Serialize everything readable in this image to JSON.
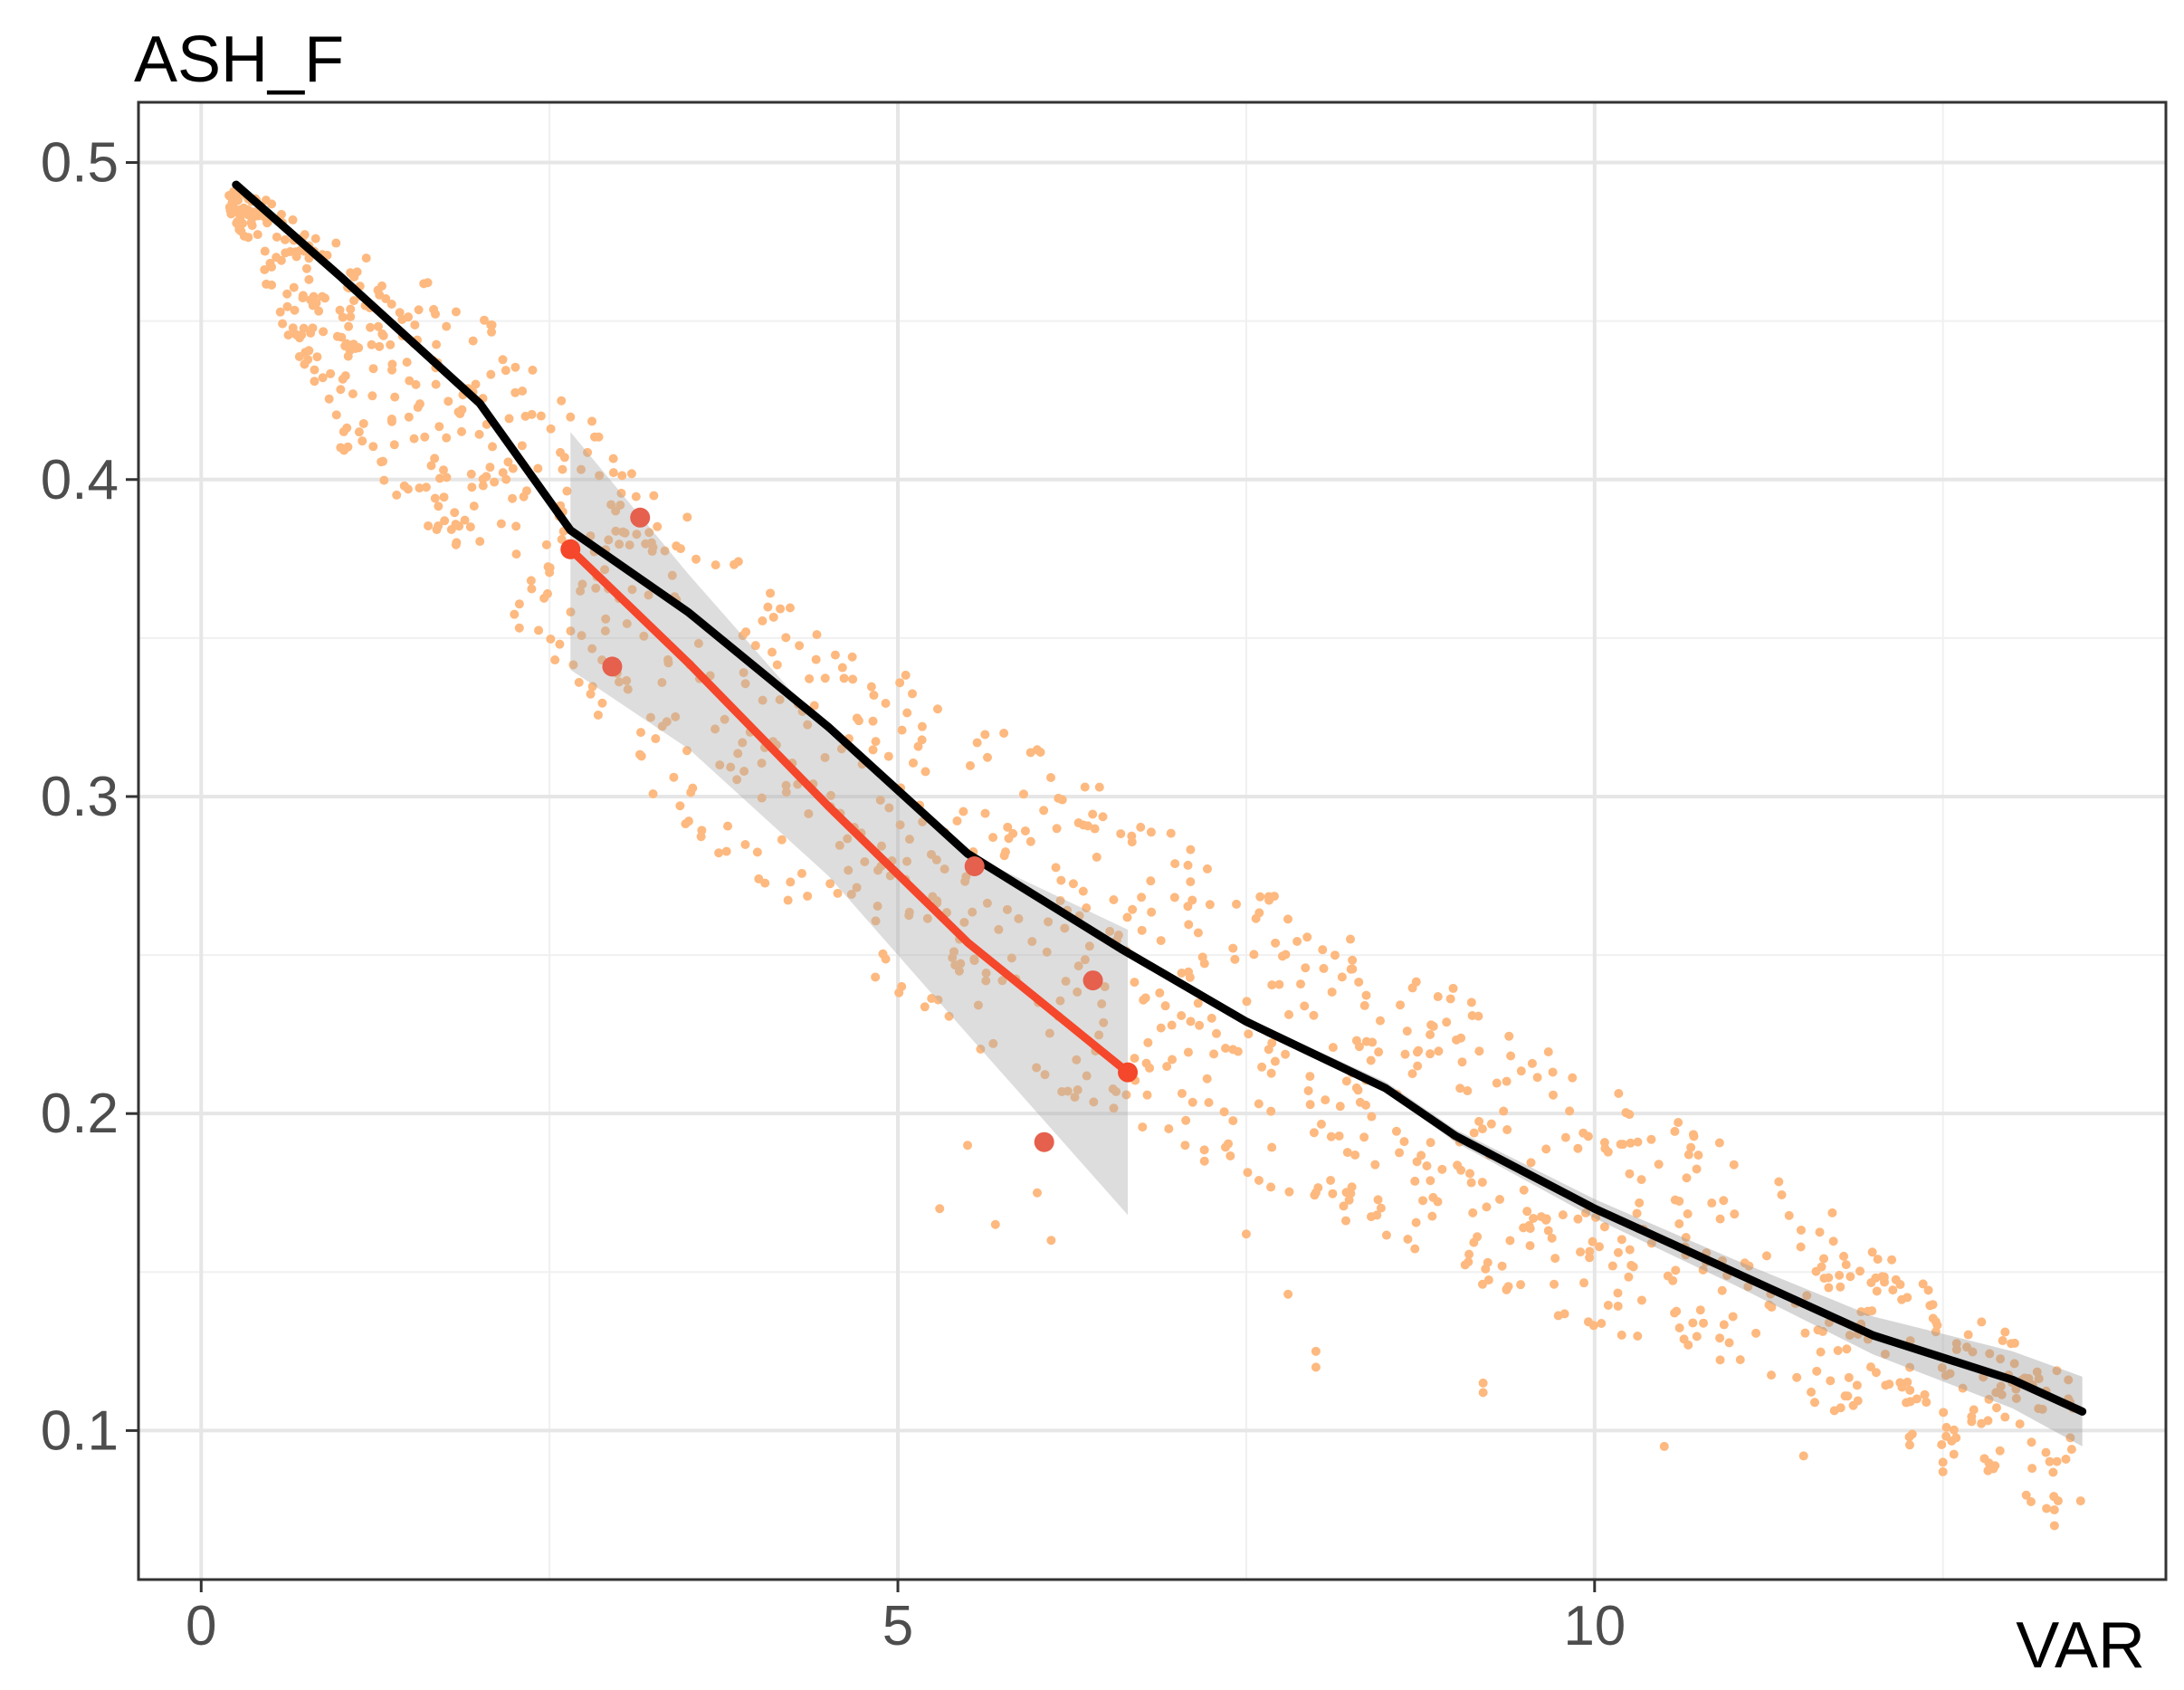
{
  "chart_data": {
    "type": "scatter",
    "xlabel": "VAR",
    "ylabel": "ASH_F",
    "xlim": [
      -0.45,
      14.1
    ],
    "ylim": [
      0.053,
      0.519
    ],
    "x_ticks": [
      0,
      5,
      10
    ],
    "x_tick_labels": [
      "0",
      "5",
      "10"
    ],
    "y_ticks": [
      0.1,
      0.2,
      0.3,
      0.4,
      0.5
    ],
    "y_tick_labels": [
      "0.1",
      "0.2",
      "0.3",
      "0.4",
      "0.5"
    ],
    "grid": true,
    "legend": "none",
    "series": [
      {
        "id": "all_points",
        "kind": "point-cloud",
        "color": "#fdb97f",
        "approx_count": 1200,
        "envelope": [
          {
            "x": 0.2,
            "y_low": 0.485,
            "y_high": 0.495
          },
          {
            "x": 1.0,
            "y_low": 0.41,
            "y_high": 0.475
          },
          {
            "x": 2.0,
            "y_low": 0.37,
            "y_high": 0.455
          },
          {
            "x": 3.0,
            "y_low": 0.31,
            "y_high": 0.41
          },
          {
            "x": 4.0,
            "y_low": 0.27,
            "y_high": 0.37
          },
          {
            "x": 5.0,
            "y_low": 0.235,
            "y_high": 0.34
          },
          {
            "x": 6.0,
            "y_low": 0.21,
            "y_high": 0.315
          },
          {
            "x": 7.0,
            "y_low": 0.19,
            "y_high": 0.29
          },
          {
            "x": 8.0,
            "y_low": 0.17,
            "y_high": 0.26
          },
          {
            "x": 9.0,
            "y_low": 0.15,
            "y_high": 0.24
          },
          {
            "x": 10.0,
            "y_low": 0.13,
            "y_high": 0.21
          },
          {
            "x": 11.0,
            "y_low": 0.12,
            "y_high": 0.19
          },
          {
            "x": 12.0,
            "y_low": 0.1,
            "y_high": 0.16
          },
          {
            "x": 13.0,
            "y_low": 0.08,
            "y_high": 0.13
          },
          {
            "x": 13.5,
            "y_low": 0.07,
            "y_high": 0.115
          }
        ],
        "outliers": [
          {
            "x": 5.3,
            "y": 0.17
          },
          {
            "x": 5.5,
            "y": 0.19
          },
          {
            "x": 5.7,
            "y": 0.165
          },
          {
            "x": 6.1,
            "y": 0.16
          },
          {
            "x": 6.0,
            "y": 0.175
          },
          {
            "x": 7.2,
            "y": 0.185
          },
          {
            "x": 7.5,
            "y": 0.162
          },
          {
            "x": 7.8,
            "y": 0.143
          },
          {
            "x": 8.0,
            "y": 0.125
          },
          {
            "x": 8.0,
            "y": 0.12
          },
          {
            "x": 9.2,
            "y": 0.115
          },
          {
            "x": 9.2,
            "y": 0.112
          },
          {
            "x": 10.5,
            "y": 0.095
          },
          {
            "x": 11.5,
            "y": 0.092
          },
          {
            "x": 12.5,
            "y": 0.09
          },
          {
            "x": 12.5,
            "y": 0.087
          },
          {
            "x": 13.3,
            "y": 0.075
          },
          {
            "x": 13.3,
            "y": 0.07
          },
          {
            "x": 13.4,
            "y": 0.116
          },
          {
            "x": 13.4,
            "y": 0.11
          }
        ]
      },
      {
        "id": "highlighted_points",
        "kind": "points",
        "color": "#e5604d",
        "points": [
          {
            "x": 3.15,
            "y": 0.388
          },
          {
            "x": 2.95,
            "y": 0.341
          },
          {
            "x": 5.55,
            "y": 0.278
          },
          {
            "x": 6.4,
            "y": 0.242
          },
          {
            "x": 6.05,
            "y": 0.191
          }
        ]
      },
      {
        "id": "overall_fit",
        "kind": "line",
        "color": "#000000",
        "band_color": "#999999",
        "points": [
          {
            "x": 0.25,
            "y": 0.493,
            "lo": 0.492,
            "hi": 0.494
          },
          {
            "x": 1.0,
            "y": 0.464,
            "lo": 0.463,
            "hi": 0.465
          },
          {
            "x": 2.0,
            "y": 0.424,
            "lo": 0.423,
            "hi": 0.425
          },
          {
            "x": 2.65,
            "y": 0.384,
            "lo": 0.383,
            "hi": 0.385
          },
          {
            "x": 3.5,
            "y": 0.358,
            "lo": 0.357,
            "hi": 0.359
          },
          {
            "x": 4.5,
            "y": 0.322,
            "lo": 0.321,
            "hi": 0.323
          },
          {
            "x": 5.5,
            "y": 0.282,
            "lo": 0.281,
            "hi": 0.283
          },
          {
            "x": 6.6,
            "y": 0.252,
            "lo": 0.251,
            "hi": 0.253
          },
          {
            "x": 7.5,
            "y": 0.229,
            "lo": 0.228,
            "hi": 0.23
          },
          {
            "x": 8.5,
            "y": 0.208,
            "lo": 0.207,
            "hi": 0.21
          },
          {
            "x": 9.0,
            "y": 0.193,
            "lo": 0.191,
            "hi": 0.195
          },
          {
            "x": 10.0,
            "y": 0.17,
            "lo": 0.167,
            "hi": 0.173
          },
          {
            "x": 11.0,
            "y": 0.15,
            "lo": 0.146,
            "hi": 0.154
          },
          {
            "x": 12.0,
            "y": 0.13,
            "lo": 0.124,
            "hi": 0.136
          },
          {
            "x": 13.0,
            "y": 0.116,
            "lo": 0.107,
            "hi": 0.125
          },
          {
            "x": 13.5,
            "y": 0.106,
            "lo": 0.095,
            "hi": 0.117
          }
        ]
      },
      {
        "id": "subset_fit",
        "kind": "line",
        "color": "#f4472b",
        "band_color": "#aaaaaa",
        "points": [
          {
            "x": 2.65,
            "y": 0.378,
            "lo": 0.34,
            "hi": 0.415
          },
          {
            "x": 3.5,
            "y": 0.342,
            "lo": 0.315,
            "hi": 0.37
          },
          {
            "x": 4.5,
            "y": 0.297,
            "lo": 0.275,
            "hi": 0.32
          },
          {
            "x": 5.5,
            "y": 0.254,
            "lo": 0.225,
            "hi": 0.282
          },
          {
            "x": 6.65,
            "y": 0.213,
            "lo": 0.168,
            "hi": 0.258
          }
        ],
        "end_markers": true
      }
    ]
  }
}
